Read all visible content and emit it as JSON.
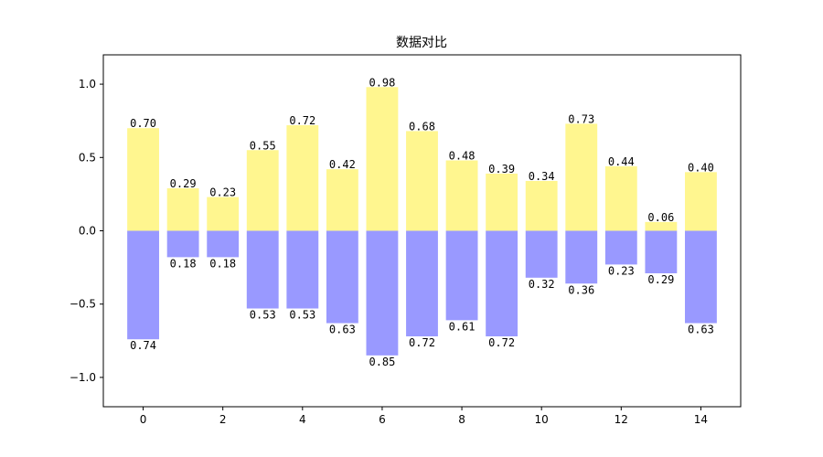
{
  "chart_data": {
    "type": "bar",
    "title": "数据对比",
    "xlabel": "",
    "ylabel": "",
    "x": [
      0,
      1,
      2,
      3,
      4,
      5,
      6,
      7,
      8,
      9,
      10,
      11,
      12,
      13,
      14
    ],
    "xticks": [
      0,
      2,
      4,
      6,
      8,
      10,
      12,
      14
    ],
    "xlim": [
      -1,
      15
    ],
    "ylim": [
      -1.2,
      1.2
    ],
    "yticks": [
      -1.0,
      -0.5,
      0.0,
      0.5,
      1.0
    ],
    "ytick_labels": [
      "−1.0",
      "−0.5",
      "0.0",
      "0.5",
      "1.0"
    ],
    "grid": false,
    "series": [
      {
        "color": "#fff68f",
        "values": [
          0.7,
          0.29,
          0.23,
          0.55,
          0.72,
          0.42,
          0.98,
          0.68,
          0.48,
          0.39,
          0.34,
          0.73,
          0.44,
          0.06,
          0.4
        ],
        "labels": [
          "0.70",
          "0.29",
          "0.23",
          "0.55",
          "0.72",
          "0.42",
          "0.98",
          "0.68",
          "0.48",
          "0.39",
          "0.34",
          "0.73",
          "0.44",
          "0.06",
          "0.40"
        ]
      },
      {
        "color": "#9999ff",
        "values": [
          -0.74,
          -0.18,
          -0.18,
          -0.53,
          -0.53,
          -0.63,
          -0.85,
          -0.72,
          -0.61,
          -0.72,
          -0.32,
          -0.36,
          -0.23,
          -0.29,
          -0.63
        ],
        "labels": [
          "0.74",
          "0.18",
          "0.18",
          "0.53",
          "0.53",
          "0.63",
          "0.85",
          "0.72",
          "0.61",
          "0.72",
          "0.32",
          "0.36",
          "0.23",
          "0.29",
          "0.63"
        ]
      }
    ]
  }
}
